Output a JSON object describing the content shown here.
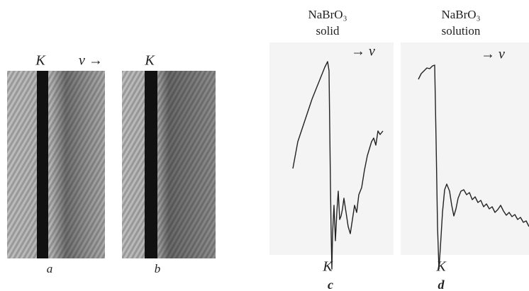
{
  "panels": [
    {
      "edge_label": "K",
      "direction_label": "ν →",
      "caption": "a"
    },
    {
      "edge_label": "K",
      "caption": "b"
    },
    {
      "title": "NaBrO₃",
      "subtitle": "solid",
      "direction_label": "→ ν",
      "edge_label": "K",
      "caption": "c"
    },
    {
      "title": "NaBrO₃",
      "subtitle": "solution",
      "direction_label": "→ ν",
      "edge_label": "K",
      "caption": "d"
    }
  ]
}
